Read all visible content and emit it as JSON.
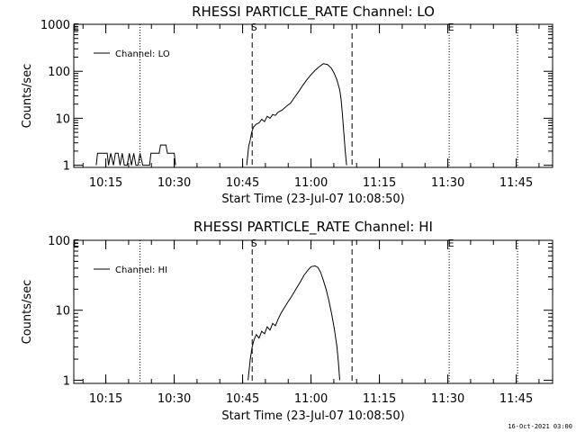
{
  "footer_timestamp": "16-Oct-2021 03:00",
  "chart_data": [
    {
      "type": "line",
      "title": "RHESSI PARTICLE_RATE Channel: LO",
      "xlabel": "Start Time (23-Jul-07 10:08:50)",
      "ylabel": "Counts/sec",
      "yscale": "log",
      "ylim": [
        0.9,
        1000
      ],
      "y_ticks": [
        1,
        10,
        100,
        1000
      ],
      "y_tick_labels": [
        "1",
        "10",
        "100",
        "1000"
      ],
      "xlim_minutes": [
        10.133,
        11.883
      ],
      "x_ticks": [
        10.25,
        10.5,
        10.75,
        11.0,
        11.25,
        11.5,
        11.75
      ],
      "x_tick_labels": [
        "10:15",
        "10:30",
        "10:45",
        "11:00",
        "11:15",
        "11:30",
        "11:45"
      ],
      "legend": "Channel: LO",
      "markers": [
        {
          "label": "E",
          "x": 10.135,
          "style": "none"
        },
        {
          "label": "",
          "x": 10.375,
          "style": "dotted"
        },
        {
          "label": "S",
          "x": 10.785,
          "style": "dashed"
        },
        {
          "label": "",
          "x": 11.15,
          "style": "dashed"
        },
        {
          "label": "E",
          "x": 11.505,
          "style": "dotted"
        },
        {
          "label": "",
          "x": 11.755,
          "style": "dotted"
        }
      ],
      "series": [
        {
          "name": "Channel: LO",
          "segments": [
            [
              [
                10.215,
                1
              ],
              [
                10.22,
                1.8
              ],
              [
                10.255,
                1.8
              ],
              [
                10.26,
                1
              ],
              [
                10.268,
                1.8
              ],
              [
                10.278,
                1
              ],
              [
                10.285,
                1.8
              ],
              [
                10.295,
                1.8
              ],
              [
                10.302,
                1
              ],
              [
                10.31,
                1.8
              ],
              [
                10.318,
                1
              ],
              [
                10.328,
                1
              ],
              [
                10.336,
                1.8
              ],
              [
                10.344,
                1
              ],
              [
                10.352,
                1.8
              ],
              [
                10.36,
                1
              ],
              [
                10.368,
                1
              ],
              [
                10.375,
                1.8
              ],
              [
                10.385,
                1
              ],
              [
                10.395,
                1
              ],
              [
                10.41,
                1
              ],
              [
                10.415,
                1.8
              ],
              [
                10.445,
                1.8
              ],
              [
                10.45,
                2.7
              ],
              [
                10.47,
                2.7
              ],
              [
                10.475,
                1.8
              ],
              [
                10.5,
                1.8
              ],
              [
                10.505,
                1
              ]
            ],
            [
              [
                10.765,
                1
              ],
              [
                10.772,
                2.5
              ],
              [
                10.778,
                3.5
              ],
              [
                10.783,
                5
              ],
              [
                10.79,
                6.5
              ],
              [
                10.8,
                7.5
              ],
              [
                10.81,
                8
              ],
              [
                10.82,
                9.5
              ],
              [
                10.83,
                8.5
              ],
              [
                10.84,
                11
              ],
              [
                10.85,
                10
              ],
              [
                10.86,
                12
              ],
              [
                10.87,
                11.5
              ],
              [
                10.88,
                13.5
              ],
              [
                10.895,
                15
              ],
              [
                10.91,
                18
              ],
              [
                10.925,
                21
              ],
              [
                10.94,
                28
              ],
              [
                10.955,
                37
              ],
              [
                10.97,
                50
              ],
              [
                10.985,
                66
              ],
              [
                11.0,
                85
              ],
              [
                11.015,
                105
              ],
              [
                11.03,
                125
              ],
              [
                11.045,
                145
              ],
              [
                11.06,
                140
              ],
              [
                11.075,
                115
              ],
              [
                11.085,
                90
              ],
              [
                11.095,
                65
              ],
              [
                11.105,
                40
              ],
              [
                11.11,
                25
              ],
              [
                11.115,
                12
              ],
              [
                11.12,
                5
              ],
              [
                11.125,
                2
              ],
              [
                11.13,
                1
              ]
            ]
          ]
        }
      ]
    },
    {
      "type": "line",
      "title": "RHESSI PARTICLE_RATE Channel: HI",
      "xlabel": "Start Time (23-Jul-07 10:08:50)",
      "ylabel": "Counts/sec",
      "yscale": "log",
      "ylim": [
        0.9,
        100
      ],
      "y_ticks": [
        1,
        10,
        100
      ],
      "y_tick_labels": [
        "1",
        "10",
        "100"
      ],
      "xlim_minutes": [
        10.133,
        11.883
      ],
      "x_ticks": [
        10.25,
        10.5,
        10.75,
        11.0,
        11.25,
        11.5,
        11.75
      ],
      "x_tick_labels": [
        "10:15",
        "10:30",
        "10:45",
        "11:00",
        "11:15",
        "11:30",
        "11:45"
      ],
      "legend": "Channel: HI",
      "markers": [
        {
          "label": "E",
          "x": 10.135,
          "style": "none"
        },
        {
          "label": "",
          "x": 10.375,
          "style": "dotted"
        },
        {
          "label": "S",
          "x": 10.785,
          "style": "dashed"
        },
        {
          "label": "",
          "x": 11.15,
          "style": "dashed"
        },
        {
          "label": "E",
          "x": 11.505,
          "style": "dotted"
        },
        {
          "label": "",
          "x": 11.755,
          "style": "dotted"
        }
      ],
      "series": [
        {
          "name": "Channel: HI",
          "segments": [
            [
              [
                10.77,
                1
              ],
              [
                10.778,
                2
              ],
              [
                10.785,
                3
              ],
              [
                10.792,
                3.8
              ],
              [
                10.8,
                4.5
              ],
              [
                10.81,
                4
              ],
              [
                10.82,
                5
              ],
              [
                10.83,
                4.6
              ],
              [
                10.84,
                5.8
              ],
              [
                10.85,
                5.2
              ],
              [
                10.86,
                6.5
              ],
              [
                10.87,
                6
              ],
              [
                10.88,
                7.5
              ],
              [
                10.89,
                9
              ],
              [
                10.9,
                10.5
              ],
              [
                10.915,
                13
              ],
              [
                10.93,
                16
              ],
              [
                10.945,
                20
              ],
              [
                10.96,
                25
              ],
              [
                10.975,
                32
              ],
              [
                10.99,
                38
              ],
              [
                11.0,
                42
              ],
              [
                11.015,
                43
              ],
              [
                11.025,
                41
              ],
              [
                11.035,
                35
              ],
              [
                11.045,
                27
              ],
              [
                11.055,
                20
              ],
              [
                11.065,
                14
              ],
              [
                11.075,
                9
              ],
              [
                11.085,
                5.5
              ],
              [
                11.095,
                3
              ],
              [
                11.1,
                1.8
              ],
              [
                11.105,
                1
              ]
            ]
          ]
        }
      ]
    }
  ]
}
